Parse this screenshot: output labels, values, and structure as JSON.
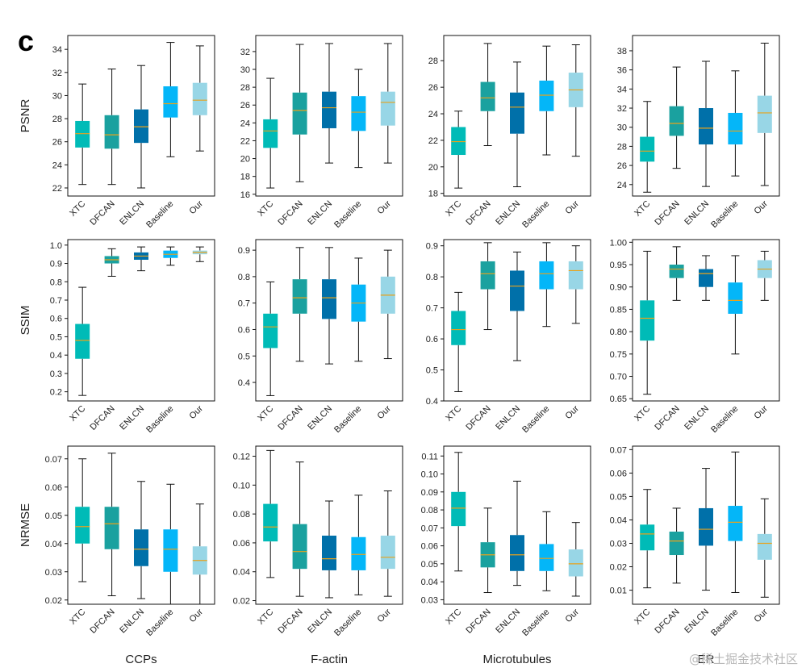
{
  "figure": {
    "panel_label": "c",
    "watermark": "@稀土掘金技术社区",
    "methods": [
      "XTC",
      "DFCAN",
      "ENLCN",
      "Baseline",
      "Our"
    ],
    "colors": {
      "XTC": "#00BBB7",
      "DFCAN": "#1AA19F",
      "ENLCN": "#0070A9",
      "Baseline": "#04B6F8",
      "Our": "#98D6E6",
      "median": "#E8A21C"
    },
    "columns": [
      "CCPs",
      "F-actin",
      "Microtubules",
      "ER"
    ],
    "rows": [
      "PSNR",
      "SSIM",
      "NRMSE"
    ]
  },
  "chart_data": [
    {
      "type": "box",
      "ylabel": "PSNR",
      "xlabel": "",
      "ylim": [
        21.3,
        35.2
      ],
      "yticks": [
        22,
        24,
        26,
        28,
        30,
        32,
        34
      ],
      "decimals": 0,
      "categories": [
        "XTC",
        "DFCAN",
        "ENLCN",
        "Baseline",
        "Our"
      ],
      "boxes": [
        [
          22.3,
          25.5,
          26.7,
          27.8,
          31.0
        ],
        [
          22.3,
          25.4,
          26.6,
          28.3,
          32.3
        ],
        [
          22.0,
          25.9,
          27.3,
          28.8,
          32.6
        ],
        [
          24.7,
          28.1,
          29.3,
          30.8,
          34.6
        ],
        [
          25.2,
          28.3,
          29.6,
          31.1,
          34.3
        ]
      ]
    },
    {
      "type": "box",
      "ylabel": "",
      "xlabel": "",
      "ylim": [
        15.8,
        33.8
      ],
      "yticks": [
        16,
        18,
        20,
        22,
        24,
        26,
        28,
        30,
        32
      ],
      "decimals": 0,
      "categories": [
        "XTC",
        "DFCAN",
        "ENLCN",
        "Baseline",
        "Our"
      ],
      "boxes": [
        [
          16.7,
          21.2,
          23.1,
          24.4,
          29.0
        ],
        [
          17.4,
          22.7,
          25.4,
          27.4,
          32.8
        ],
        [
          19.5,
          23.4,
          25.7,
          27.5,
          32.9
        ],
        [
          19.0,
          23.1,
          25.2,
          27.0,
          30.0
        ],
        [
          19.5,
          23.7,
          26.3,
          27.5,
          32.9
        ]
      ]
    },
    {
      "type": "box",
      "ylabel": "",
      "xlabel": "",
      "ylim": [
        17.8,
        29.9
      ],
      "yticks": [
        18,
        20,
        22,
        24,
        26,
        28
      ],
      "decimals": 0,
      "categories": [
        "XTC",
        "DFCAN",
        "ENLCN",
        "Baseline",
        "Our"
      ],
      "boxes": [
        [
          18.4,
          20.9,
          21.9,
          23.0,
          24.2
        ],
        [
          21.6,
          24.2,
          25.2,
          26.4,
          29.3
        ],
        [
          18.5,
          22.5,
          24.5,
          25.6,
          27.9
        ],
        [
          20.9,
          24.2,
          25.4,
          26.5,
          29.1
        ],
        [
          20.8,
          24.5,
          25.8,
          27.1,
          29.2
        ]
      ]
    },
    {
      "type": "box",
      "ylabel": "",
      "xlabel": "",
      "ylim": [
        22.8,
        39.6
      ],
      "yticks": [
        24,
        26,
        28,
        30,
        32,
        34,
        36,
        38
      ],
      "decimals": 0,
      "categories": [
        "XTC",
        "DFCAN",
        "ENLCN",
        "Baseline",
        "Our"
      ],
      "boxes": [
        [
          23.2,
          26.4,
          27.5,
          29.0,
          32.7
        ],
        [
          25.7,
          29.1,
          30.4,
          32.2,
          36.3
        ],
        [
          23.8,
          28.2,
          29.9,
          32.0,
          36.9
        ],
        [
          24.9,
          28.2,
          29.6,
          31.5,
          35.9
        ],
        [
          23.9,
          29.4,
          31.5,
          33.3,
          38.8
        ]
      ]
    },
    {
      "type": "box",
      "ylabel": "SSIM",
      "xlabel": "",
      "ylim": [
        0.15,
        1.03
      ],
      "yticks": [
        0.2,
        0.3,
        0.4,
        0.5,
        0.6,
        0.7,
        0.8,
        0.9,
        1.0
      ],
      "decimals": 1,
      "categories": [
        "XTC",
        "DFCAN",
        "ENLCN",
        "Baseline",
        "Our"
      ],
      "boxes": [
        [
          0.18,
          0.38,
          0.48,
          0.57,
          0.77
        ],
        [
          0.83,
          0.9,
          0.92,
          0.94,
          0.98
        ],
        [
          0.86,
          0.92,
          0.94,
          0.96,
          0.99
        ],
        [
          0.89,
          0.93,
          0.95,
          0.97,
          0.99
        ],
        [
          0.91,
          0.95,
          0.96,
          0.97,
          0.99
        ]
      ]
    },
    {
      "type": "box",
      "ylabel": "",
      "xlabel": "",
      "ylim": [
        0.33,
        0.94
      ],
      "yticks": [
        0.4,
        0.5,
        0.6,
        0.7,
        0.8,
        0.9
      ],
      "decimals": 1,
      "categories": [
        "XTC",
        "DFCAN",
        "ENLCN",
        "Baseline",
        "Our"
      ],
      "boxes": [
        [
          0.35,
          0.53,
          0.61,
          0.66,
          0.78
        ],
        [
          0.48,
          0.66,
          0.72,
          0.79,
          0.91
        ],
        [
          0.47,
          0.64,
          0.72,
          0.79,
          0.91
        ],
        [
          0.48,
          0.63,
          0.7,
          0.77,
          0.87
        ],
        [
          0.49,
          0.66,
          0.73,
          0.8,
          0.9
        ]
      ]
    },
    {
      "type": "box",
      "ylabel": "",
      "xlabel": "",
      "ylim": [
        0.4,
        0.92
      ],
      "yticks": [
        0.4,
        0.5,
        0.6,
        0.7,
        0.8,
        0.9
      ],
      "decimals": 1,
      "categories": [
        "XTC",
        "DFCAN",
        "ENLCN",
        "Baseline",
        "Our"
      ],
      "boxes": [
        [
          0.43,
          0.58,
          0.63,
          0.69,
          0.75
        ],
        [
          0.63,
          0.76,
          0.81,
          0.85,
          0.91
        ],
        [
          0.53,
          0.69,
          0.77,
          0.82,
          0.88
        ],
        [
          0.64,
          0.76,
          0.81,
          0.85,
          0.91
        ],
        [
          0.65,
          0.76,
          0.82,
          0.85,
          0.9
        ]
      ]
    },
    {
      "type": "box",
      "ylabel": "",
      "xlabel": "",
      "ylim": [
        0.645,
        1.006
      ],
      "yticks": [
        0.65,
        0.7,
        0.75,
        0.8,
        0.85,
        0.9,
        0.95,
        1.0
      ],
      "decimals": 2,
      "categories": [
        "XTC",
        "DFCAN",
        "ENLCN",
        "Baseline",
        "Our"
      ],
      "boxes": [
        [
          0.66,
          0.78,
          0.83,
          0.87,
          0.98
        ],
        [
          0.87,
          0.92,
          0.94,
          0.95,
          0.99
        ],
        [
          0.87,
          0.9,
          0.93,
          0.94,
          0.97
        ],
        [
          0.75,
          0.84,
          0.87,
          0.91,
          0.97
        ],
        [
          0.87,
          0.92,
          0.94,
          0.96,
          0.98
        ]
      ]
    },
    {
      "type": "box",
      "ylabel": "NRMSE",
      "xlabel": "CCPs",
      "ylim": [
        0.0185,
        0.0745
      ],
      "yticks": [
        0.02,
        0.03,
        0.04,
        0.05,
        0.06,
        0.07
      ],
      "decimals": 2,
      "categories": [
        "XTC",
        "DFCAN",
        "ENLCN",
        "Baseline",
        "Our"
      ],
      "boxes": [
        [
          0.0265,
          0.04,
          0.046,
          0.053,
          0.07
        ],
        [
          0.0215,
          0.038,
          0.047,
          0.053,
          0.072
        ],
        [
          0.0205,
          0.032,
          0.038,
          0.045,
          0.062
        ],
        [
          0.0185,
          0.03,
          0.038,
          0.045,
          0.061
        ],
        [
          0.0185,
          0.029,
          0.034,
          0.039,
          0.054
        ]
      ]
    },
    {
      "type": "box",
      "ylabel": "",
      "xlabel": "F-actin",
      "ylim": [
        0.0175,
        0.127
      ],
      "yticks": [
        0.02,
        0.04,
        0.06,
        0.08,
        0.1,
        0.12
      ],
      "decimals": 2,
      "categories": [
        "XTC",
        "DFCAN",
        "ENLCN",
        "Baseline",
        "Our"
      ],
      "boxes": [
        [
          0.036,
          0.061,
          0.071,
          0.087,
          0.124
        ],
        [
          0.023,
          0.042,
          0.054,
          0.073,
          0.116
        ],
        [
          0.022,
          0.041,
          0.049,
          0.065,
          0.089
        ],
        [
          0.024,
          0.041,
          0.052,
          0.064,
          0.093
        ],
        [
          0.023,
          0.042,
          0.05,
          0.065,
          0.096
        ]
      ]
    },
    {
      "type": "box",
      "ylabel": "",
      "xlabel": "Microtubules",
      "ylim": [
        0.0275,
        0.1155
      ],
      "yticks": [
        0.03,
        0.04,
        0.05,
        0.06,
        0.07,
        0.08,
        0.09,
        0.1,
        0.11
      ],
      "decimals": 2,
      "categories": [
        "XTC",
        "DFCAN",
        "ENLCN",
        "Baseline",
        "Our"
      ],
      "boxes": [
        [
          0.046,
          0.071,
          0.081,
          0.09,
          0.112
        ],
        [
          0.034,
          0.048,
          0.055,
          0.062,
          0.081
        ],
        [
          0.038,
          0.046,
          0.055,
          0.066,
          0.096
        ],
        [
          0.035,
          0.046,
          0.053,
          0.061,
          0.079
        ],
        [
          0.032,
          0.043,
          0.05,
          0.058,
          0.073
        ]
      ]
    },
    {
      "type": "box",
      "ylabel": "",
      "xlabel": "ER",
      "ylim": [
        0.004,
        0.0715
      ],
      "yticks": [
        0.01,
        0.02,
        0.03,
        0.04,
        0.05,
        0.06,
        0.07
      ],
      "decimals": 2,
      "categories": [
        "XTC",
        "DFCAN",
        "ENLCN",
        "Baseline",
        "Our"
      ],
      "boxes": [
        [
          0.011,
          0.027,
          0.034,
          0.038,
          0.053
        ],
        [
          0.013,
          0.025,
          0.031,
          0.035,
          0.045
        ],
        [
          0.01,
          0.029,
          0.036,
          0.045,
          0.062
        ],
        [
          0.009,
          0.031,
          0.039,
          0.046,
          0.069
        ],
        [
          0.007,
          0.023,
          0.03,
          0.034,
          0.049
        ]
      ]
    }
  ]
}
